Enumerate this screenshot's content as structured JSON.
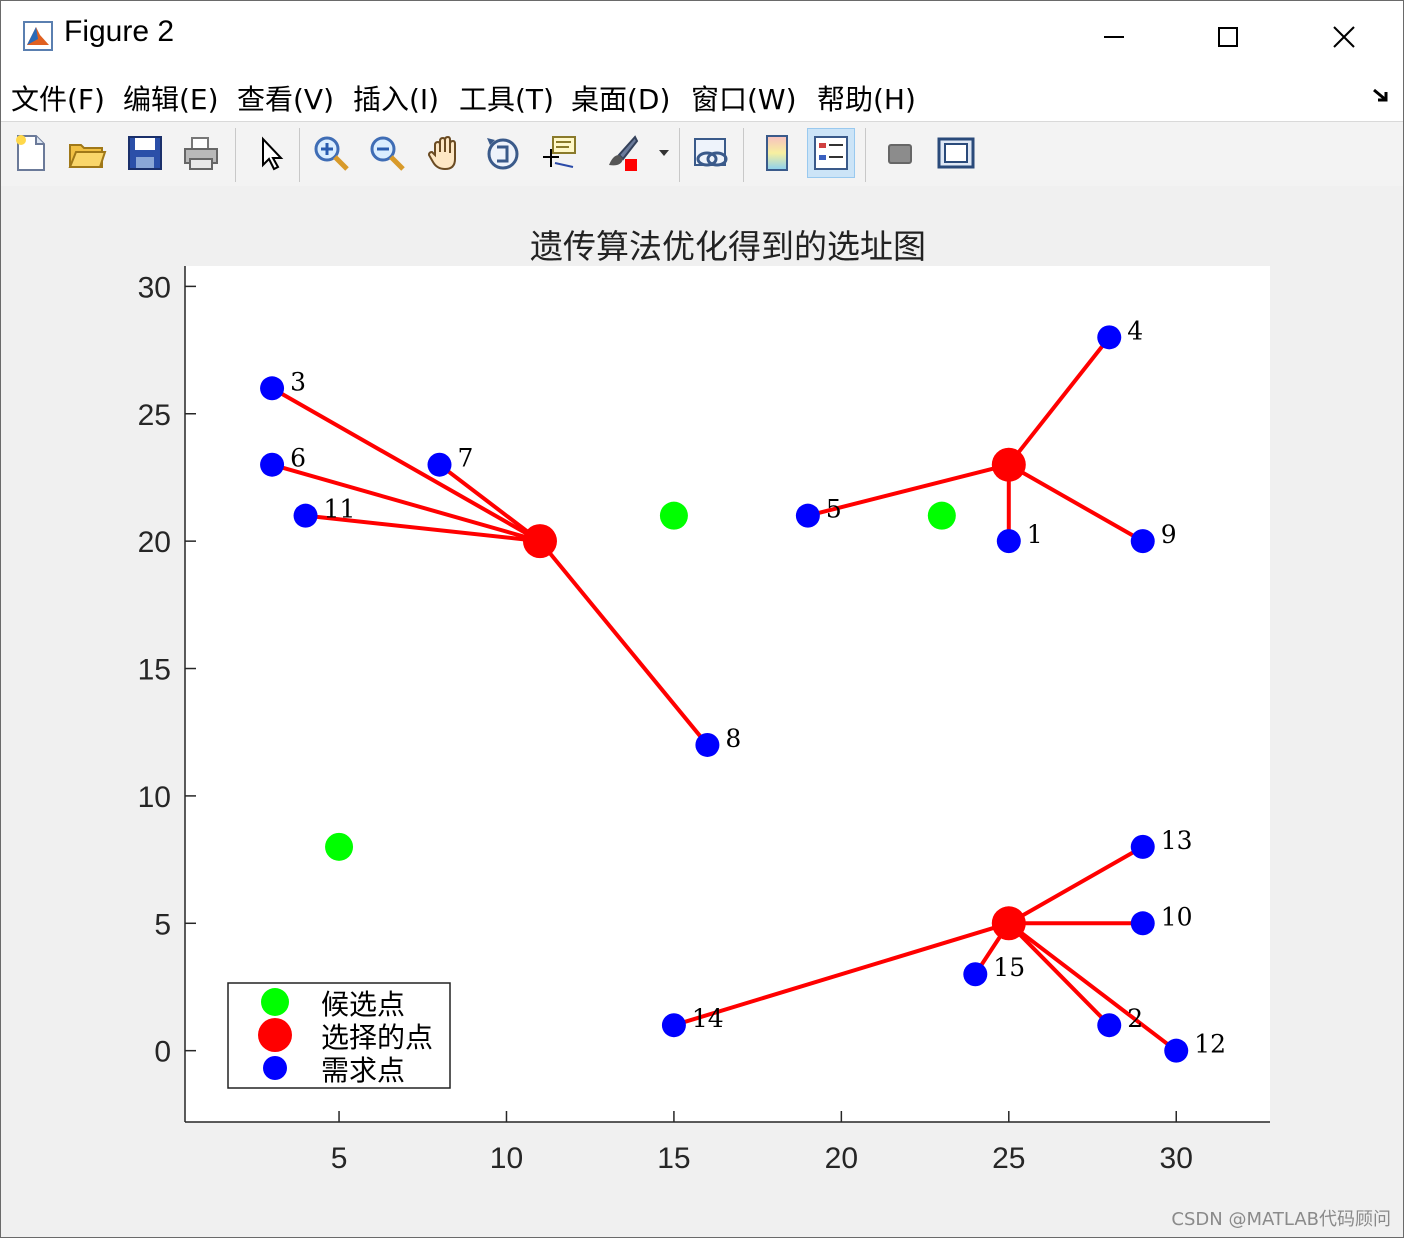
{
  "window": {
    "title": "Figure 2",
    "controls": [
      "minimize",
      "maximize",
      "close"
    ]
  },
  "menu": {
    "items": [
      "文件(F)",
      "编辑(E)",
      "查看(V)",
      "插入(I)",
      "工具(T)",
      "桌面(D)",
      "窗口(W)",
      "帮助(H)"
    ]
  },
  "toolbar": {
    "icons": [
      "new-figure-icon",
      "open-file-icon",
      "save-icon",
      "print-icon",
      "pointer-icon",
      "zoom-in-icon",
      "zoom-out-icon",
      "pan-hand-icon",
      "rotate-3d-icon",
      "data-cursor-icon",
      "brush-icon",
      "brush-dropdown-icon",
      "link-plot-icon",
      "colorbar-icon",
      "legend-icon",
      "hide-plot-tools-icon",
      "show-plot-tools-icon"
    ],
    "active": "legend-icon"
  },
  "chart_data": {
    "type": "scatter",
    "title": "遗传算法优化得到的选址图",
    "xlabel": "",
    "ylabel": "",
    "xlim": [
      0.4,
      32.8
    ],
    "ylim": [
      -2.8,
      30.8
    ],
    "xticks": [
      5,
      10,
      15,
      20,
      25,
      30
    ],
    "yticks": [
      0,
      5,
      10,
      15,
      20,
      25,
      30
    ],
    "grid": false,
    "legend_position": "bottom-left",
    "series": [
      {
        "name": "候选点",
        "color": "#00ff00",
        "points": [
          [
            15,
            21
          ],
          [
            23,
            21
          ],
          [
            5,
            8
          ]
        ]
      },
      {
        "name": "选择的点",
        "color": "#ff0000",
        "points": [
          [
            11,
            20
          ],
          [
            25,
            23
          ],
          [
            25,
            5
          ]
        ]
      },
      {
        "name": "需求点",
        "color": "#0000ff",
        "points": [
          {
            "id": "1",
            "x": 25,
            "y": 20
          },
          {
            "id": "2",
            "x": 28,
            "y": 1
          },
          {
            "id": "3",
            "x": 3,
            "y": 26
          },
          {
            "id": "4",
            "x": 28,
            "y": 28
          },
          {
            "id": "5",
            "x": 19,
            "y": 21
          },
          {
            "id": "6",
            "x": 3,
            "y": 23
          },
          {
            "id": "7",
            "x": 8,
            "y": 23
          },
          {
            "id": "8",
            "x": 16,
            "y": 12
          },
          {
            "id": "9",
            "x": 29,
            "y": 20
          },
          {
            "id": "10",
            "x": 29,
            "y": 5
          },
          {
            "id": "11",
            "x": 4,
            "y": 21
          },
          {
            "id": "12",
            "x": 30,
            "y": 0
          },
          {
            "id": "13",
            "x": 29,
            "y": 8
          },
          {
            "id": "14",
            "x": 15,
            "y": 1
          },
          {
            "id": "15",
            "x": 24,
            "y": 3
          }
        ]
      }
    ],
    "assignments": [
      {
        "from": [
          11,
          20
        ],
        "to": [
          "3",
          "6",
          "7",
          "11",
          "8"
        ]
      },
      {
        "from": [
          25,
          23
        ],
        "to": [
          "4",
          "5",
          "1",
          "9"
        ]
      },
      {
        "from": [
          25,
          5
        ],
        "to": [
          "13",
          "10",
          "15",
          "2",
          "12",
          "14"
        ]
      }
    ],
    "line_color": "#ff0000"
  },
  "watermark": "CSDN @MATLAB代码顾问"
}
